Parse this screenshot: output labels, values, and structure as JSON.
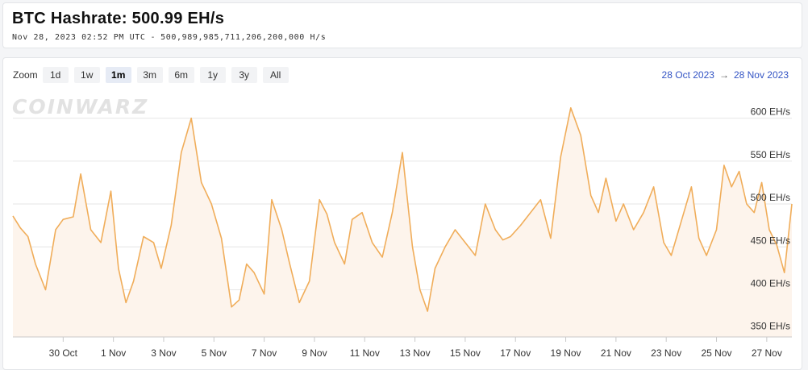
{
  "header": {
    "title": "BTC Hashrate: 500.99 EH/s",
    "timestamp": "Nov 28, 2023 02:52 PM UTC",
    "separator": "-",
    "raw_hashrate": "500,989,985,711,206,200,000 H/s"
  },
  "toolbar": {
    "zoom_label": "Zoom",
    "zoom_options": [
      "1d",
      "1w",
      "1m",
      "3m",
      "6m",
      "1y",
      "3y",
      "All"
    ],
    "selected": "1m",
    "range_start": "28 Oct 2023",
    "range_arrow": "→",
    "range_end": "28 Nov 2023"
  },
  "watermark": "COINWARZ",
  "colors": {
    "line": "#f0ad5a",
    "fill": "#fdf4ec",
    "grid": "#e6e6e6",
    "range_text": "#3354c4"
  },
  "chart_data": {
    "type": "line",
    "title": "",
    "xlabel": "",
    "ylabel": "",
    "ylim": [
      345,
      625
    ],
    "y_ticks": [
      350,
      400,
      450,
      500,
      550,
      600
    ],
    "y_tick_labels": [
      "350 EH/s",
      "400 EH/s",
      "450 EH/s",
      "500 EH/s",
      "550 EH/s",
      "600 EH/s"
    ],
    "x_ticks": [
      "30 Oct",
      "1 Nov",
      "3 Nov",
      "5 Nov",
      "7 Nov",
      "9 Nov",
      "11 Nov",
      "13 Nov",
      "15 Nov",
      "17 Nov",
      "19 Nov",
      "21 Nov",
      "23 Nov",
      "25 Nov",
      "27 Nov"
    ],
    "grid": true,
    "legend": "none",
    "series": [
      {
        "x": [
          0.0,
          0.3,
          0.6,
          0.9,
          1.3,
          1.7,
          2.0,
          2.4,
          2.7,
          3.1,
          3.5,
          3.9,
          4.2,
          4.5,
          4.8,
          5.2,
          5.6,
          5.9,
          6.3,
          6.7,
          7.1,
          7.5,
          7.9,
          8.3,
          8.7,
          9.0,
          9.3,
          9.6,
          10.0,
          10.3,
          10.7,
          11.0,
          11.4,
          11.8,
          12.2,
          12.5,
          12.8,
          13.2,
          13.5,
          13.9,
          14.3,
          14.7,
          15.1,
          15.5,
          15.9,
          16.2,
          16.5,
          16.8,
          17.2,
          17.6,
          18.0,
          18.4,
          18.8,
          19.2,
          19.5,
          19.8,
          20.2,
          20.6,
          21.0,
          21.4,
          21.8,
          22.2,
          22.6,
          23.0,
          23.3,
          23.6,
          24.0,
          24.3,
          24.7,
          25.1,
          25.5,
          25.9,
          26.2,
          26.6,
          27.0,
          27.3,
          27.6,
          28.0,
          28.3,
          28.6,
          28.9,
          29.2,
          29.5,
          29.8,
          30.1,
          30.4,
          30.7,
          31.0
        ],
        "y": [
          486,
          472,
          462,
          430,
          400,
          470,
          482,
          485,
          535,
          470,
          455,
          515,
          425,
          385,
          410,
          462,
          455,
          425,
          475,
          560,
          600,
          525,
          500,
          460,
          380,
          388,
          430,
          420,
          395,
          505,
          470,
          432,
          385,
          410,
          505,
          488,
          455,
          430,
          482,
          490,
          455,
          438,
          490,
          560,
          450,
          400,
          375,
          425,
          450,
          470,
          455,
          440,
          500,
          470,
          458,
          462,
          475,
          490,
          505,
          460,
          555,
          612,
          580,
          510,
          490,
          530,
          480,
          500,
          470,
          490,
          520,
          455,
          440,
          480,
          520,
          460,
          440,
          470,
          545,
          520,
          538,
          500,
          490,
          525,
          470,
          452,
          420,
          500
        ]
      }
    ]
  }
}
